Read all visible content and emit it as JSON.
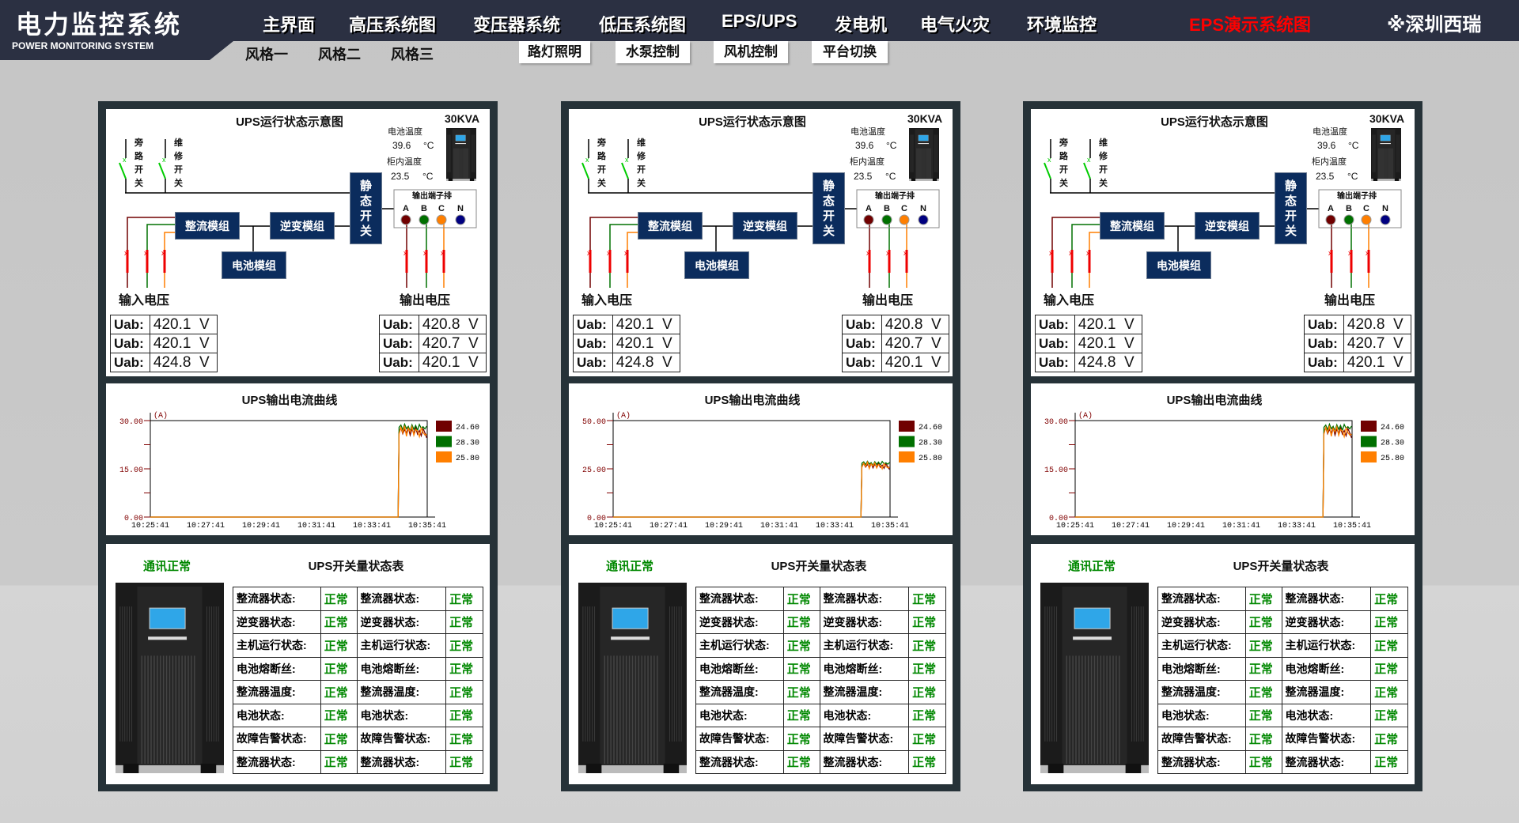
{
  "header": {
    "title": "电力监控系统",
    "subtitle": "POWER MONITORING SYSTEM",
    "nav": [
      "主界面",
      "高压系统图",
      "变压器系统",
      "低压系统图",
      "EPS/UPS",
      "发电机",
      "电气火灾",
      "环境监控"
    ],
    "active_nav": "EPS演示系统图",
    "active_color": "#ff0000",
    "brand": "※深圳西瑞",
    "styles": [
      "风格一",
      "风格二",
      "风格三"
    ],
    "sub_buttons": [
      "路灯照明",
      "水泵控制",
      "风机控制",
      "平台切换"
    ]
  },
  "colors": {
    "phase_a": "#700000",
    "phase_b": "#007000",
    "phase_c": "#ff7f00",
    "phase_n": "#000080",
    "module": "#0b2c5d",
    "ok": "#008800"
  },
  "panels": [
    {
      "diagram": {
        "title": "UPS运行状态示意图",
        "capacity": "30KVA",
        "battery_temp_label": "电池温度",
        "battery_temp": "39.6",
        "cabinet_temp_label": "柜内温度",
        "cabinet_temp": "23.5",
        "temp_unit": "°C",
        "bypass_switch": [
          "旁",
          "路",
          "开",
          "关"
        ],
        "maint_switch": [
          "维",
          "修",
          "开",
          "关"
        ],
        "static_switch": [
          "静",
          "态",
          "开",
          "关"
        ],
        "terminal_label": "输出端子排",
        "phases": [
          "A",
          "B",
          "C",
          "N"
        ],
        "rectifier": "整流模组",
        "inverter": "逆变模组",
        "battery": "电池模组",
        "input_label": "输入电压",
        "output_label": "输出电压",
        "input_rows": [
          {
            "label": "Uab:",
            "value": "420.1",
            "unit": "V"
          },
          {
            "label": "Uab:",
            "value": "420.1",
            "unit": "V"
          },
          {
            "label": "Uab:",
            "value": "424.8",
            "unit": "V"
          }
        ],
        "output_rows": [
          {
            "label": "Uab:",
            "value": "420.8",
            "unit": "V"
          },
          {
            "label": "Uab:",
            "value": "420.7",
            "unit": "V"
          },
          {
            "label": "Uab:",
            "value": "420.1",
            "unit": "V"
          }
        ]
      },
      "chart_title": "UPS输出电流曲线",
      "status": {
        "comm": "通讯正常",
        "title": "UPS开关量状态表",
        "rows": [
          [
            "整流器状态:",
            "正常",
            "整流器状态:",
            "正常"
          ],
          [
            "逆变器状态:",
            "正常",
            "逆变器状态:",
            "正常"
          ],
          [
            "主机运行状态:",
            "正常",
            "主机运行状态:",
            "正常"
          ],
          [
            "电池熔断丝:",
            "正常",
            "电池熔断丝:",
            "正常"
          ],
          [
            "整流器温度:",
            "正常",
            "整流器温度:",
            "正常"
          ],
          [
            "电池状态:",
            "正常",
            "电池状态:",
            "正常"
          ],
          [
            "故障告警状态:",
            "正常",
            "故障告警状态:",
            "正常"
          ],
          [
            "整流器状态:",
            "正常",
            "整流器状态:",
            "正常"
          ]
        ]
      }
    },
    {
      "diagram": {
        "title": "UPS运行状态示意图",
        "capacity": "30KVA",
        "battery_temp_label": "电池温度",
        "battery_temp": "39.6",
        "cabinet_temp_label": "柜内温度",
        "cabinet_temp": "23.5",
        "temp_unit": "°C",
        "bypass_switch": [
          "旁",
          "路",
          "开",
          "关"
        ],
        "maint_switch": [
          "维",
          "修",
          "开",
          "关"
        ],
        "static_switch": [
          "静",
          "态",
          "开",
          "关"
        ],
        "terminal_label": "输出端子排",
        "phases": [
          "A",
          "B",
          "C",
          "N"
        ],
        "rectifier": "整流模组",
        "inverter": "逆变模组",
        "battery": "电池模组",
        "input_label": "输入电压",
        "output_label": "输出电压",
        "input_rows": [
          {
            "label": "Uab:",
            "value": "420.1",
            "unit": "V"
          },
          {
            "label": "Uab:",
            "value": "420.1",
            "unit": "V"
          },
          {
            "label": "Uab:",
            "value": "424.8",
            "unit": "V"
          }
        ],
        "output_rows": [
          {
            "label": "Uab:",
            "value": "420.8",
            "unit": "V"
          },
          {
            "label": "Uab:",
            "value": "420.7",
            "unit": "V"
          },
          {
            "label": "Uab:",
            "value": "420.1",
            "unit": "V"
          }
        ]
      },
      "chart_title": "UPS输出电流曲线",
      "status": {
        "comm": "通讯正常",
        "title": "UPS开关量状态表",
        "rows": [
          [
            "整流器状态:",
            "正常",
            "整流器状态:",
            "正常"
          ],
          [
            "逆变器状态:",
            "正常",
            "逆变器状态:",
            "正常"
          ],
          [
            "主机运行状态:",
            "正常",
            "主机运行状态:",
            "正常"
          ],
          [
            "电池熔断丝:",
            "正常",
            "电池熔断丝:",
            "正常"
          ],
          [
            "整流器温度:",
            "正常",
            "整流器温度:",
            "正常"
          ],
          [
            "电池状态:",
            "正常",
            "电池状态:",
            "正常"
          ],
          [
            "故障告警状态:",
            "正常",
            "故障告警状态:",
            "正常"
          ],
          [
            "整流器状态:",
            "正常",
            "整流器状态:",
            "正常"
          ]
        ]
      }
    },
    {
      "diagram": {
        "title": "UPS运行状态示意图",
        "capacity": "30KVA",
        "battery_temp_label": "电池温度",
        "battery_temp": "39.6",
        "cabinet_temp_label": "柜内温度",
        "cabinet_temp": "23.5",
        "temp_unit": "°C",
        "bypass_switch": [
          "旁",
          "路",
          "开",
          "关"
        ],
        "maint_switch": [
          "维",
          "修",
          "开",
          "关"
        ],
        "static_switch": [
          "静",
          "态",
          "开",
          "关"
        ],
        "terminal_label": "输出端子排",
        "phases": [
          "A",
          "B",
          "C",
          "N"
        ],
        "rectifier": "整流模组",
        "inverter": "逆变模组",
        "battery": "电池模组",
        "input_label": "输入电压",
        "output_label": "输出电压",
        "input_rows": [
          {
            "label": "Uab:",
            "value": "420.1",
            "unit": "V"
          },
          {
            "label": "Uab:",
            "value": "420.1",
            "unit": "V"
          },
          {
            "label": "Uab:",
            "value": "424.8",
            "unit": "V"
          }
        ],
        "output_rows": [
          {
            "label": "Uab:",
            "value": "420.8",
            "unit": "V"
          },
          {
            "label": "Uab:",
            "value": "420.7",
            "unit": "V"
          },
          {
            "label": "Uab:",
            "value": "420.1",
            "unit": "V"
          }
        ]
      },
      "chart_title": "UPS输出电流曲线",
      "status": {
        "comm": "通讯正常",
        "title": "UPS开关量状态表",
        "rows": [
          [
            "整流器状态:",
            "正常",
            "整流器状态:",
            "正常"
          ],
          [
            "逆变器状态:",
            "正常",
            "逆变器状态:",
            "正常"
          ],
          [
            "主机运行状态:",
            "正常",
            "主机运行状态:",
            "正常"
          ],
          [
            "电池熔断丝:",
            "正常",
            "电池熔断丝:",
            "正常"
          ],
          [
            "整流器温度:",
            "正常",
            "整流器温度:",
            "正常"
          ],
          [
            "电池状态:",
            "正常",
            "电池状态:",
            "正常"
          ],
          [
            "故障告警状态:",
            "正常",
            "故障告警状态:",
            "正常"
          ],
          [
            "整流器状态:",
            "正常",
            "整流器状态:",
            "正常"
          ]
        ]
      }
    }
  ],
  "chart_data": [
    {
      "type": "line",
      "title": "UPS输出电流曲线",
      "ylabel": "(A)",
      "ylim": [
        0,
        30
      ],
      "yticks": [
        "0.00",
        "15.00",
        "30.00"
      ],
      "xlim": [
        "10:25:41",
        "10:35:41"
      ],
      "xticks": [
        "10:25:41",
        "10:27:41",
        "10:29:41",
        "10:31:41",
        "10:33:41",
        "10:35:41"
      ],
      "grid": false,
      "legend": "right",
      "x": [
        "10:25:41",
        "10:34:38",
        "10:34:40",
        "10:34:44",
        "10:34:48",
        "10:34:52",
        "10:34:56",
        "10:35:00",
        "10:35:04",
        "10:35:08",
        "10:35:12",
        "10:35:16",
        "10:35:20",
        "10:35:24",
        "10:35:28",
        "10:35:32",
        "10:35:36",
        "10:35:40"
      ],
      "series": [
        {
          "name": "24.60",
          "color": "#700000",
          "values": [
            0,
            0,
            26.5,
            27.8,
            25.9,
            27.2,
            26.1,
            28.0,
            25.5,
            27.4,
            26.0,
            27.9,
            25.8,
            26.9,
            25.3,
            27.5,
            26.2,
            24.6
          ]
        },
        {
          "name": "28.30",
          "color": "#007000",
          "values": [
            0,
            0,
            27.9,
            28.6,
            27.1,
            28.9,
            27.5,
            28.2,
            26.8,
            28.7,
            27.3,
            28.5,
            27.0,
            28.8,
            27.6,
            28.1,
            27.4,
            28.3
          ]
        },
        {
          "name": "25.80",
          "color": "#ff7f00",
          "values": [
            0,
            0,
            25.8,
            27.9,
            26.2,
            28.4,
            25.1,
            27.6,
            26.5,
            28.1,
            25.4,
            27.2,
            26.8,
            25.0,
            27.7,
            26.3,
            25.5,
            25.8
          ]
        }
      ]
    },
    {
      "type": "line",
      "title": "UPS输出电流曲线",
      "ylabel": "(A)",
      "ylim": [
        0,
        50
      ],
      "yticks": [
        "0.00",
        "25.00",
        "50.00"
      ],
      "xlim": [
        "10:25:41",
        "10:35:41"
      ],
      "xticks": [
        "10:25:41",
        "10:27:41",
        "10:29:41",
        "10:31:41",
        "10:33:41",
        "10:35:41"
      ],
      "grid": false,
      "legend": "right",
      "x": [
        "10:25:41",
        "10:34:38",
        "10:34:40",
        "10:34:44",
        "10:34:48",
        "10:34:52",
        "10:34:56",
        "10:35:00",
        "10:35:04",
        "10:35:08",
        "10:35:12",
        "10:35:16",
        "10:35:20",
        "10:35:24",
        "10:35:28",
        "10:35:32",
        "10:35:36",
        "10:35:40"
      ],
      "series": [
        {
          "name": "24.60",
          "color": "#700000",
          "values": [
            0,
            0,
            26.5,
            27.8,
            25.9,
            27.2,
            26.1,
            28.0,
            25.5,
            27.4,
            26.0,
            27.9,
            25.8,
            26.9,
            25.3,
            27.5,
            26.2,
            24.6
          ]
        },
        {
          "name": "28.30",
          "color": "#007000",
          "values": [
            0,
            0,
            27.9,
            28.6,
            27.1,
            28.9,
            27.5,
            28.2,
            26.8,
            28.7,
            27.3,
            28.5,
            27.0,
            28.8,
            27.6,
            28.1,
            27.4,
            28.3
          ]
        },
        {
          "name": "25.80",
          "color": "#ff7f00",
          "values": [
            0,
            0,
            25.8,
            27.9,
            26.2,
            28.4,
            25.1,
            27.6,
            26.5,
            28.1,
            25.4,
            27.2,
            26.8,
            25.0,
            27.7,
            26.3,
            25.5,
            25.8
          ]
        }
      ]
    },
    {
      "type": "line",
      "title": "UPS输出电流曲线",
      "ylabel": "(A)",
      "ylim": [
        0,
        30
      ],
      "yticks": [
        "0.00",
        "15.00",
        "30.00"
      ],
      "xlim": [
        "10:25:41",
        "10:35:41"
      ],
      "xticks": [
        "10:25:41",
        "10:27:41",
        "10:29:41",
        "10:31:41",
        "10:33:41",
        "10:35:41"
      ],
      "grid": false,
      "legend": "right",
      "x": [
        "10:25:41",
        "10:34:38",
        "10:34:40",
        "10:34:44",
        "10:34:48",
        "10:34:52",
        "10:34:56",
        "10:35:00",
        "10:35:04",
        "10:35:08",
        "10:35:12",
        "10:35:16",
        "10:35:20",
        "10:35:24",
        "10:35:28",
        "10:35:32",
        "10:35:36",
        "10:35:40"
      ],
      "series": [
        {
          "name": "24.60",
          "color": "#700000",
          "values": [
            0,
            0,
            26.5,
            27.8,
            25.9,
            27.2,
            26.1,
            28.0,
            25.5,
            27.4,
            26.0,
            27.9,
            25.8,
            26.9,
            25.3,
            27.5,
            26.2,
            24.6
          ]
        },
        {
          "name": "28.30",
          "color": "#007000",
          "values": [
            0,
            0,
            27.9,
            28.6,
            27.1,
            28.9,
            27.5,
            28.2,
            26.8,
            28.7,
            27.3,
            28.5,
            27.0,
            28.8,
            27.6,
            28.1,
            27.4,
            28.3
          ]
        },
        {
          "name": "25.80",
          "color": "#ff7f00",
          "values": [
            0,
            0,
            25.8,
            27.9,
            26.2,
            28.4,
            25.1,
            27.6,
            26.5,
            28.1,
            25.4,
            27.2,
            26.8,
            25.0,
            27.7,
            26.3,
            25.5,
            25.8
          ]
        }
      ]
    }
  ]
}
